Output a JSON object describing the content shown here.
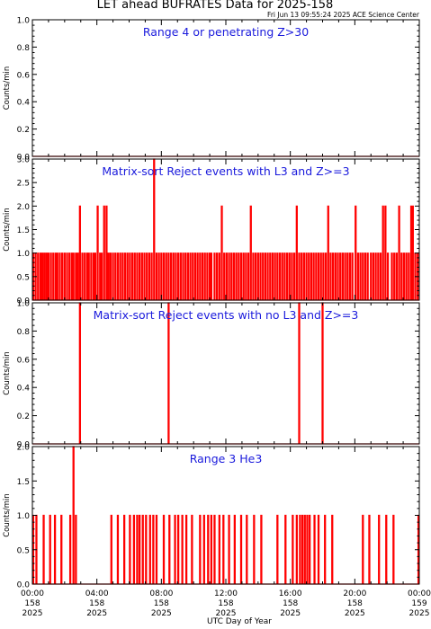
{
  "title": "LET ahead BUFRATES Data for 2025-158",
  "timestamp": "Fri Jun 13 09:55:24 2025 ACE Science Center",
  "xlabel": "UTC Day of Year",
  "colors": {
    "data": "#ff0000",
    "label": "#1a1adc",
    "axes": "#000000"
  },
  "x_ticks": [
    {
      "time": "00:00",
      "doy": "158",
      "year": "2025"
    },
    {
      "time": "04:00",
      "doy": "158",
      "year": "2025"
    },
    {
      "time": "08:00",
      "doy": "158",
      "year": "2025"
    },
    {
      "time": "12:00",
      "doy": "158",
      "year": "2025"
    },
    {
      "time": "16:00",
      "doy": "158",
      "year": "2025"
    },
    {
      "time": "20:00",
      "doy": "158",
      "year": "2025"
    },
    {
      "time": "00:00",
      "doy": "159",
      "year": "2025"
    }
  ],
  "chart_data": [
    {
      "type": "line",
      "label": "Range 4 or  penetrating Z>30",
      "ylabel": "Counts/min",
      "xlim": [
        0,
        24
      ],
      "ylim": [
        0,
        1.0
      ],
      "yticks": [
        "0.0",
        "0.2",
        "0.4",
        "0.6",
        "0.8",
        "1.0"
      ],
      "spikes": []
    },
    {
      "type": "line",
      "label": "Matrix-sort Reject events with L3 and Z>=3",
      "ylabel": "Counts/min",
      "xlim": [
        0,
        24
      ],
      "ylim": [
        0,
        3.0
      ],
      "yticks": [
        "0.0",
        "0.5",
        "1.0",
        "1.5",
        "2.0",
        "2.5",
        "3.0"
      ],
      "spikes": [
        [
          0.05,
          1
        ],
        [
          0.2,
          1
        ],
        [
          0.35,
          1
        ],
        [
          0.5,
          1
        ],
        [
          0.62,
          1
        ],
        [
          0.75,
          1
        ],
        [
          0.88,
          1
        ],
        [
          1.0,
          1
        ],
        [
          1.15,
          1
        ],
        [
          1.3,
          1
        ],
        [
          1.45,
          1
        ],
        [
          1.55,
          1
        ],
        [
          1.7,
          1
        ],
        [
          1.85,
          1
        ],
        [
          2.0,
          1
        ],
        [
          2.15,
          1
        ],
        [
          2.3,
          1
        ],
        [
          2.45,
          1
        ],
        [
          2.55,
          1
        ],
        [
          2.7,
          1
        ],
        [
          2.82,
          1
        ],
        [
          2.95,
          2
        ],
        [
          3.1,
          1
        ],
        [
          3.25,
          1
        ],
        [
          3.4,
          1
        ],
        [
          3.5,
          1
        ],
        [
          3.65,
          1
        ],
        [
          3.8,
          1
        ],
        [
          3.9,
          1
        ],
        [
          4.05,
          2
        ],
        [
          4.2,
          1
        ],
        [
          4.3,
          1
        ],
        [
          4.45,
          2
        ],
        [
          4.6,
          2
        ],
        [
          4.72,
          1
        ],
        [
          4.85,
          1
        ],
        [
          5.0,
          1
        ],
        [
          5.15,
          1
        ],
        [
          5.3,
          1
        ],
        [
          5.45,
          1
        ],
        [
          5.6,
          1
        ],
        [
          5.75,
          1
        ],
        [
          5.9,
          1
        ],
        [
          6.05,
          1
        ],
        [
          6.2,
          1
        ],
        [
          6.35,
          1
        ],
        [
          6.5,
          1
        ],
        [
          6.65,
          1
        ],
        [
          6.8,
          1
        ],
        [
          6.95,
          1
        ],
        [
          7.1,
          1
        ],
        [
          7.25,
          1
        ],
        [
          7.4,
          1
        ],
        [
          7.55,
          3
        ],
        [
          7.7,
          1
        ],
        [
          7.85,
          1
        ],
        [
          8.0,
          1
        ],
        [
          8.15,
          1
        ],
        [
          8.3,
          1
        ],
        [
          8.45,
          1
        ],
        [
          8.6,
          1
        ],
        [
          8.75,
          1
        ],
        [
          8.9,
          1
        ],
        [
          9.05,
          1
        ],
        [
          9.2,
          1
        ],
        [
          9.35,
          1
        ],
        [
          9.5,
          1
        ],
        [
          9.65,
          1
        ],
        [
          9.8,
          1
        ],
        [
          9.95,
          1
        ],
        [
          10.1,
          1
        ],
        [
          10.25,
          1
        ],
        [
          10.4,
          1
        ],
        [
          10.55,
          1
        ],
        [
          10.7,
          1
        ],
        [
          10.85,
          1
        ],
        [
          11.0,
          1
        ],
        [
          11.1,
          1
        ],
        [
          11.3,
          1
        ],
        [
          11.45,
          1
        ],
        [
          11.6,
          1
        ],
        [
          11.75,
          2
        ],
        [
          11.9,
          1
        ],
        [
          12.05,
          1
        ],
        [
          12.2,
          1
        ],
        [
          12.35,
          1
        ],
        [
          12.5,
          1
        ],
        [
          12.65,
          1
        ],
        [
          12.8,
          1
        ],
        [
          12.95,
          1
        ],
        [
          13.1,
          1
        ],
        [
          13.25,
          1
        ],
        [
          13.4,
          1
        ],
        [
          13.55,
          2
        ],
        [
          13.7,
          1
        ],
        [
          13.85,
          1
        ],
        [
          14.0,
          1
        ],
        [
          14.15,
          1
        ],
        [
          14.3,
          1
        ],
        [
          14.45,
          1
        ],
        [
          14.6,
          1
        ],
        [
          14.75,
          1
        ],
        [
          14.9,
          1
        ],
        [
          15.05,
          1
        ],
        [
          15.2,
          1
        ],
        [
          15.35,
          1
        ],
        [
          15.5,
          1
        ],
        [
          15.65,
          1
        ],
        [
          15.8,
          1
        ],
        [
          15.95,
          1
        ],
        [
          16.1,
          1
        ],
        [
          16.25,
          1
        ],
        [
          16.4,
          2
        ],
        [
          16.55,
          1
        ],
        [
          16.7,
          1
        ],
        [
          16.85,
          1
        ],
        [
          17.0,
          1
        ],
        [
          17.15,
          1
        ],
        [
          17.3,
          1
        ],
        [
          17.45,
          1
        ],
        [
          17.6,
          1
        ],
        [
          17.75,
          1
        ],
        [
          17.9,
          1
        ],
        [
          18.05,
          1
        ],
        [
          18.2,
          1
        ],
        [
          18.35,
          2
        ],
        [
          18.5,
          1
        ],
        [
          18.65,
          1
        ],
        [
          18.8,
          1
        ],
        [
          18.95,
          1
        ],
        [
          19.1,
          1
        ],
        [
          19.25,
          1
        ],
        [
          19.4,
          1
        ],
        [
          19.55,
          1
        ],
        [
          19.7,
          1
        ],
        [
          19.85,
          1
        ],
        [
          20.05,
          2
        ],
        [
          20.2,
          1
        ],
        [
          20.35,
          1
        ],
        [
          20.5,
          1
        ],
        [
          20.65,
          1
        ],
        [
          20.8,
          1
        ],
        [
          21.0,
          1
        ],
        [
          21.15,
          1
        ],
        [
          21.3,
          1
        ],
        [
          21.45,
          1
        ],
        [
          21.6,
          1
        ],
        [
          21.75,
          2
        ],
        [
          21.9,
          2
        ],
        [
          22.05,
          1
        ],
        [
          22.3,
          1
        ],
        [
          22.45,
          1
        ],
        [
          22.6,
          1
        ],
        [
          22.75,
          2
        ],
        [
          22.9,
          1
        ],
        [
          23.05,
          1
        ],
        [
          23.2,
          1
        ],
        [
          23.35,
          1
        ],
        [
          23.5,
          2
        ],
        [
          23.6,
          2
        ],
        [
          23.75,
          1
        ],
        [
          23.9,
          1
        ]
      ]
    },
    {
      "type": "line",
      "label": "Matrix-sort Reject events with no L3 and Z>=3",
      "ylabel": "Counts/min",
      "xlim": [
        0,
        24
      ],
      "ylim": [
        0,
        1.0
      ],
      "yticks": [
        "0.0",
        "0.2",
        "0.4",
        "0.6",
        "0.8",
        "1.0"
      ],
      "spikes": [
        [
          2.95,
          1
        ],
        [
          8.45,
          1
        ],
        [
          16.55,
          1
        ],
        [
          18.0,
          1
        ]
      ]
    },
    {
      "type": "line",
      "label": "Range 3 He3",
      "ylabel": "Counts/min",
      "xlim": [
        0,
        24
      ],
      "ylim": [
        0,
        2.0
      ],
      "yticks": [
        "0.0",
        "0.5",
        "1.0",
        "1.5",
        "2.0"
      ],
      "spikes": [
        [
          0.05,
          1
        ],
        [
          0.25,
          1
        ],
        [
          0.7,
          1
        ],
        [
          1.1,
          1
        ],
        [
          1.4,
          1
        ],
        [
          1.8,
          1
        ],
        [
          2.35,
          1
        ],
        [
          2.55,
          2
        ],
        [
          2.7,
          1
        ],
        [
          4.9,
          1
        ],
        [
          5.3,
          1
        ],
        [
          5.7,
          1
        ],
        [
          6.05,
          1
        ],
        [
          6.3,
          1
        ],
        [
          6.5,
          1
        ],
        [
          6.65,
          1
        ],
        [
          6.85,
          1
        ],
        [
          7.05,
          1
        ],
        [
          7.3,
          1
        ],
        [
          7.5,
          1
        ],
        [
          7.7,
          1
        ],
        [
          8.15,
          1
        ],
        [
          8.5,
          1
        ],
        [
          8.85,
          1
        ],
        [
          9.05,
          1
        ],
        [
          9.3,
          1
        ],
        [
          9.55,
          1
        ],
        [
          9.9,
          1
        ],
        [
          10.4,
          1
        ],
        [
          10.65,
          1
        ],
        [
          10.9,
          1
        ],
        [
          11.1,
          1
        ],
        [
          11.3,
          1
        ],
        [
          11.6,
          1
        ],
        [
          11.85,
          1
        ],
        [
          12.2,
          1
        ],
        [
          12.55,
          1
        ],
        [
          12.95,
          1
        ],
        [
          13.3,
          1
        ],
        [
          13.75,
          1
        ],
        [
          14.2,
          1
        ],
        [
          15.2,
          1
        ],
        [
          15.7,
          1
        ],
        [
          16.15,
          1
        ],
        [
          16.4,
          1
        ],
        [
          16.6,
          1
        ],
        [
          16.75,
          1
        ],
        [
          16.9,
          1
        ],
        [
          17.05,
          1
        ],
        [
          17.2,
          1
        ],
        [
          17.5,
          1
        ],
        [
          17.75,
          1
        ],
        [
          18.15,
          1
        ],
        [
          18.6,
          1
        ],
        [
          20.5,
          1
        ],
        [
          20.9,
          1
        ],
        [
          21.5,
          1
        ],
        [
          21.95,
          1
        ],
        [
          22.4,
          1
        ],
        [
          23.95,
          1
        ]
      ]
    }
  ]
}
